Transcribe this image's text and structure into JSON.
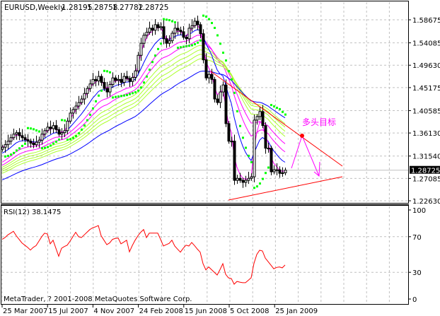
{
  "header": {
    "symbol": "EURUSD,Weekly",
    "open": "1.28195",
    "high": "1.28758",
    "low": "1.27782",
    "close": "1.28725"
  },
  "annotation": {
    "text": "多头目标",
    "color": "#ff00ff"
  },
  "rsi_pane": {
    "title": "RSI(12) 38.1475",
    "levels": [
      "100",
      "70",
      "30",
      "0"
    ]
  },
  "watermark": "MetaTrader, ? 2001-2008 MetaQuotes Software Corp.",
  "current_price_label": "1.28725",
  "colors": {
    "sar": "#00ff00",
    "fast_ma": "#ff00ff",
    "mid_ma": "#0000ff",
    "fan_ma": "#adff2f",
    "trendline": "#ff0000",
    "rsi": "#ff0000"
  },
  "chart_data": [
    {
      "type": "candlestick",
      "title": "EURUSD,Weekly",
      "x_unit": "week",
      "x_tick_labels": [
        "25 Mar 2007",
        "15 Jul 2007",
        "4 Nov 2007",
        "24 Feb 2008",
        "15 Jun 2008",
        "5 Oct 2008",
        "25 Jan 2009"
      ],
      "y_tick_labels": [
        "1.58675",
        "1.54085",
        "1.49630",
        "1.45175",
        "1.40585",
        "1.36130",
        "1.31540",
        "1.27085",
        "1.22630"
      ],
      "ylim": [
        1.2263,
        1.6183
      ],
      "grid": true,
      "closes": [
        1.333,
        1.338,
        1.345,
        1.352,
        1.359,
        1.362,
        1.356,
        1.352,
        1.348,
        1.345,
        1.341,
        1.338,
        1.343,
        1.347,
        1.359,
        1.366,
        1.373,
        1.37,
        1.376,
        1.368,
        1.359,
        1.362,
        1.366,
        1.385,
        1.401,
        1.408,
        1.415,
        1.422,
        1.429,
        1.44,
        1.45,
        1.459,
        1.468,
        1.465,
        1.474,
        1.462,
        1.45,
        1.443,
        1.458,
        1.471,
        1.466,
        1.468,
        1.462,
        1.474,
        1.47,
        1.464,
        1.472,
        1.485,
        1.516,
        1.54,
        1.556,
        1.562,
        1.57,
        1.566,
        1.577,
        1.571,
        1.573,
        1.549,
        1.54,
        1.545,
        1.56,
        1.57,
        1.566,
        1.563,
        1.552,
        1.549,
        1.57,
        1.575,
        1.584,
        1.577,
        1.559,
        1.507,
        1.471,
        1.478,
        1.468,
        1.429,
        1.422,
        1.443,
        1.457,
        1.38,
        1.345,
        1.345,
        1.267,
        1.271,
        1.267,
        1.263,
        1.267,
        1.271,
        1.274,
        1.387,
        1.394,
        1.404,
        1.376,
        1.331,
        1.331,
        1.284,
        1.288,
        1.288,
        1.281,
        1.282,
        1.28725
      ]
    },
    {
      "type": "line",
      "title": "RSI(12) 38.1475",
      "ylim": [
        0,
        100
      ],
      "y_tick_labels": [
        "100",
        "70",
        "30",
        "0"
      ],
      "values": [
        67,
        69,
        72,
        74,
        76,
        71,
        67,
        63,
        60.5,
        58,
        55,
        58,
        60,
        65,
        70,
        74,
        73,
        62,
        66,
        57,
        48,
        57,
        59,
        60.5,
        65,
        70,
        75,
        70,
        69,
        72,
        75,
        78,
        80,
        81,
        82.5,
        71,
        66,
        61,
        63,
        67,
        68,
        68.5,
        62,
        64,
        66,
        53,
        60,
        66,
        71,
        75,
        78,
        69,
        74,
        74,
        74,
        74,
        67,
        59.5,
        61,
        62.5,
        66,
        59.5,
        56,
        52.6,
        57,
        60.5,
        59.5,
        63.5,
        60,
        56,
        52.6,
        39.7,
        32.8,
        36,
        33,
        30,
        27,
        33,
        39.7,
        27.8,
        23.8,
        23,
        16.7,
        19.8,
        19,
        18.3,
        18.3,
        21,
        23.8,
        40,
        50,
        54.8,
        54,
        46,
        42,
        38,
        34,
        35.5,
        36,
        35,
        38.1475
      ]
    }
  ]
}
